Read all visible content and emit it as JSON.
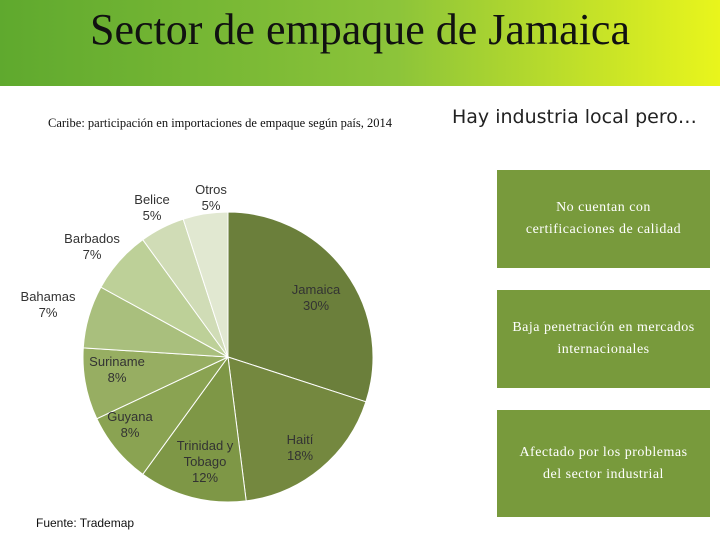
{
  "header": {
    "title": "Sector de empaque de Jamaica"
  },
  "chart_data": {
    "type": "pie",
    "subtitle": "Caribe: participación en importaciones de empaque según país, 2014",
    "source": "Fuente: Trademap",
    "categories": [
      "Jamaica",
      "Haití",
      "Trinidad y Tobago",
      "Guyana",
      "Suriname",
      "Bahamas",
      "Barbados",
      "Belice",
      "Otros"
    ],
    "values": [
      30,
      18,
      12,
      8,
      8,
      7,
      7,
      5,
      5
    ],
    "value_labels": [
      "30%",
      "18%",
      "12%",
      "8%",
      "8%",
      "7%",
      "7%",
      "5%",
      "5%"
    ],
    "colors": [
      "#6b7f3b",
      "#74883f",
      "#7e9746",
      "#8aa352",
      "#97ae62",
      "#a9bf7d",
      "#bdd098",
      "#d0dcb6",
      "#e1e8d1"
    ]
  },
  "side_panel": {
    "heading": "Hay industria local pero…",
    "items": [
      "No cuentan con certificaciones de calidad",
      "Baja penetración en mercados internacionales",
      "Afectado por los problemas del sector industrial"
    ]
  }
}
